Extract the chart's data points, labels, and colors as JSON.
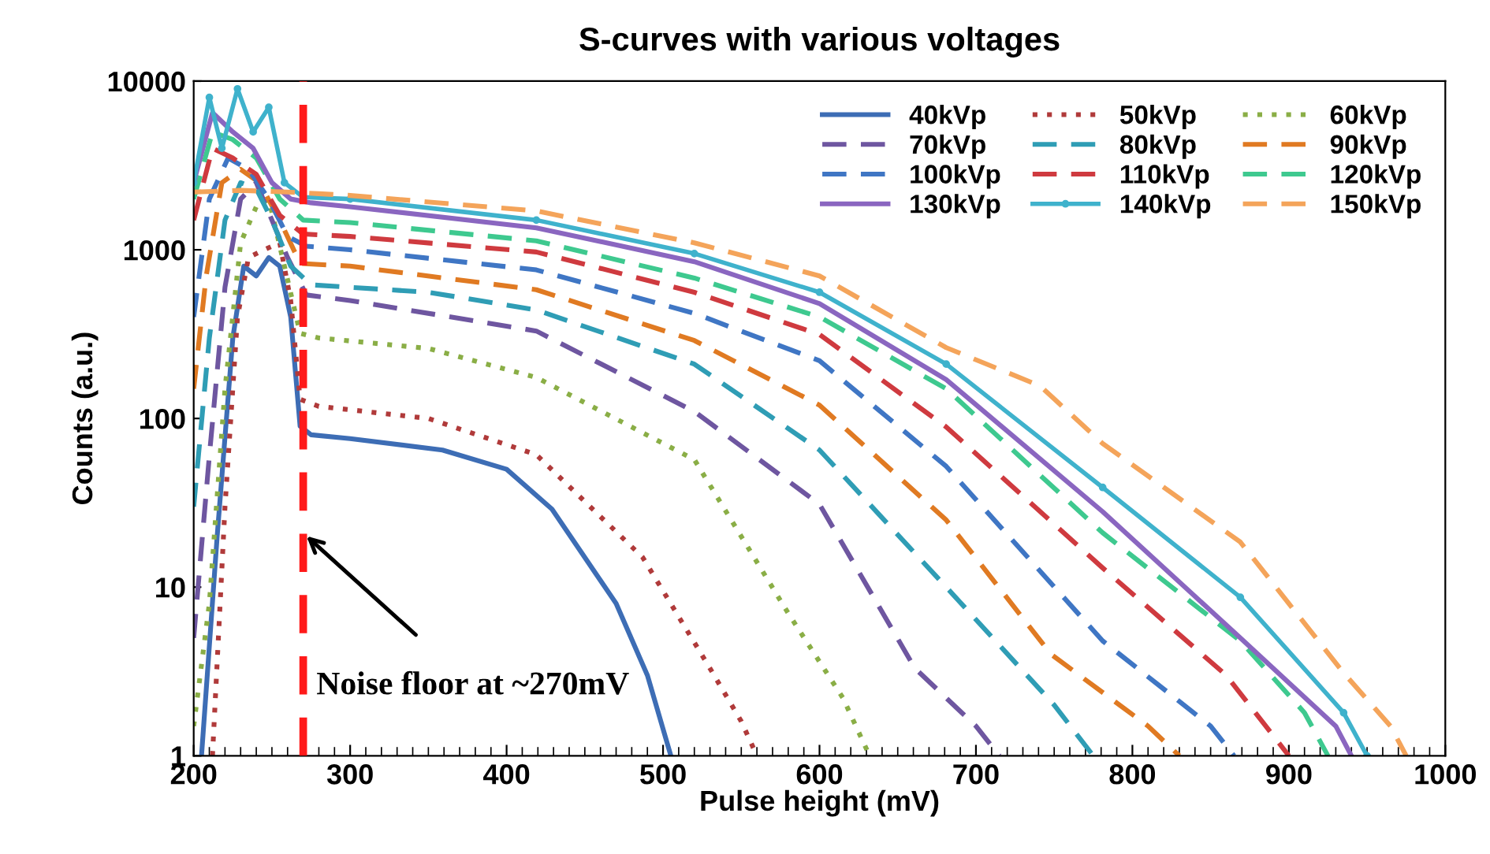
{
  "chart_data": {
    "type": "line",
    "title": "S-curves with various voltages",
    "xlabel": "Pulse height (mV)",
    "ylabel": "Counts (a.u.)",
    "log": "y",
    "xlim": [
      200,
      1000
    ],
    "xticks": [
      200,
      300,
      400,
      500,
      600,
      700,
      800,
      900,
      1000
    ],
    "ylim": [
      1,
      10000
    ],
    "yticks": [
      1,
      10,
      100,
      1000,
      10000
    ],
    "grid": false,
    "legend": "top right",
    "ref_lines": [
      {
        "axis": "x",
        "value": 270,
        "label": null,
        "color": "#ff1a1a",
        "line_style": "dashed"
      }
    ],
    "annotations": [
      "Noise floor at ~270mV"
    ],
    "series": [
      {
        "name": "40kVp",
        "color": "#3d6db5",
        "line_style": "solid",
        "x": [
          205,
          215,
          225,
          232,
          240,
          248,
          255,
          262,
          268,
          275,
          300,
          359,
          400,
          429,
          470,
          490,
          505
        ],
        "values": [
          1,
          20,
          300,
          800,
          700,
          900,
          800,
          400,
          90,
          80,
          76,
          65,
          50,
          29,
          8,
          3,
          1
        ]
      },
      {
        "name": "50kVp",
        "color": "#b03a3a",
        "line_style": "dotted",
        "x": [
          212,
          220,
          228,
          235,
          245,
          255,
          262,
          268,
          280,
          350,
          419,
          487,
          530,
          550,
          560
        ],
        "values": [
          1,
          30,
          400,
          900,
          1000,
          1100,
          500,
          130,
          118,
          100,
          61,
          15,
          3.3,
          1.6,
          1
        ]
      },
      {
        "name": "60kVp",
        "color": "#8aae46",
        "line_style": "dotted",
        "x": [
          200,
          210,
          220,
          230,
          240,
          248,
          258,
          268,
          280,
          350,
          419,
          520,
          580,
          615,
          632
        ],
        "values": [
          1.5,
          8,
          150,
          1100,
          1800,
          2000,
          800,
          320,
          300,
          260,
          175,
          57,
          7,
          2.2,
          1
        ]
      },
      {
        "name": "70kVp",
        "color": "#6e56a0",
        "line_style": "dashed",
        "x": [
          200,
          210,
          220,
          230,
          240,
          250,
          260,
          272,
          300,
          419,
          520,
          600,
          661,
          700,
          715
        ],
        "values": [
          5,
          60,
          600,
          2000,
          2500,
          1500,
          900,
          540,
          500,
          330,
          110,
          31,
          3.3,
          1.5,
          1
        ]
      },
      {
        "name": "80kVp",
        "color": "#2f9db5",
        "line_style": "dashed",
        "x": [
          200,
          210,
          220,
          230,
          240,
          250,
          262,
          275,
          350,
          419,
          520,
          600,
          681,
          750,
          775
        ],
        "values": [
          30,
          300,
          1500,
          2500,
          2300,
          1500,
          800,
          620,
          560,
          440,
          210,
          65,
          10,
          2,
          1
        ]
      },
      {
        "name": "90kVp",
        "color": "#e07a22",
        "line_style": "dashed",
        "x": [
          200,
          208,
          218,
          230,
          242,
          255,
          268,
          300,
          419,
          520,
          600,
          681,
          748,
          810,
          830
        ],
        "values": [
          150,
          700,
          2500,
          3000,
          2500,
          1500,
          830,
          800,
          580,
          290,
          120,
          25,
          4,
          1.5,
          1
        ]
      },
      {
        "name": "100kVp",
        "color": "#3f76c4",
        "line_style": "dashed",
        "x": [
          200,
          210,
          222,
          235,
          248,
          260,
          272,
          300,
          419,
          520,
          600,
          681,
          781,
          850,
          865
        ],
        "values": [
          400,
          2000,
          3500,
          3000,
          2000,
          1200,
          1050,
          1000,
          760,
          420,
          220,
          52,
          4.8,
          1.5,
          1
        ]
      },
      {
        "name": "110kVp",
        "color": "#cf3a3f",
        "line_style": "dashed",
        "x": [
          200,
          212,
          225,
          240,
          255,
          270,
          300,
          419,
          520,
          600,
          681,
          781,
          860,
          900
        ],
        "values": [
          1500,
          4000,
          3500,
          2800,
          1600,
          1240,
          1200,
          970,
          560,
          315,
          89,
          13,
          3,
          1
        ]
      },
      {
        "name": "120kVp",
        "color": "#3ec98f",
        "line_style": "dashed",
        "x": [
          200,
          212,
          225,
          240,
          255,
          270,
          300,
          419,
          520,
          600,
          681,
          781,
          869,
          910,
          925
        ],
        "values": [
          2000,
          5000,
          4500,
          3500,
          2000,
          1500,
          1450,
          1130,
          680,
          400,
          150,
          21,
          4.8,
          1.8,
          1
        ]
      },
      {
        "name": "130kVp",
        "color": "#8a66c0",
        "line_style": "solid",
        "x": [
          200,
          212,
          225,
          238,
          250,
          262,
          275,
          300,
          419,
          520,
          600,
          681,
          781,
          869,
          930,
          940
        ],
        "values": [
          2500,
          6500,
          5000,
          4000,
          2500,
          2000,
          1900,
          1800,
          1350,
          850,
          480,
          170,
          28,
          5,
          1.5,
          1
        ]
      },
      {
        "name": "140kVp",
        "color": "#3fb2cc",
        "line_style": "solid",
        "marker": "circle",
        "x": [
          200,
          210,
          218,
          228,
          238,
          248,
          258,
          270,
          300,
          419,
          520,
          600,
          681,
          781,
          869,
          935,
          950
        ],
        "values": [
          2500,
          8000,
          4000,
          9000,
          5000,
          7000,
          2500,
          2050,
          2000,
          1500,
          950,
          560,
          210,
          39,
          8.7,
          1.8,
          1
        ]
      },
      {
        "name": "150kVp",
        "color": "#f4a45a",
        "line_style": "dashed",
        "x": [
          200,
          230,
          260,
          280,
          300,
          419,
          520,
          600,
          681,
          741,
          781,
          869,
          935,
          965,
          975
        ],
        "values": [
          2200,
          2250,
          2200,
          2150,
          2100,
          1700,
          1100,
          700,
          263,
          156,
          71,
          18.5,
          3.1,
          1.5,
          1
        ]
      }
    ]
  }
}
